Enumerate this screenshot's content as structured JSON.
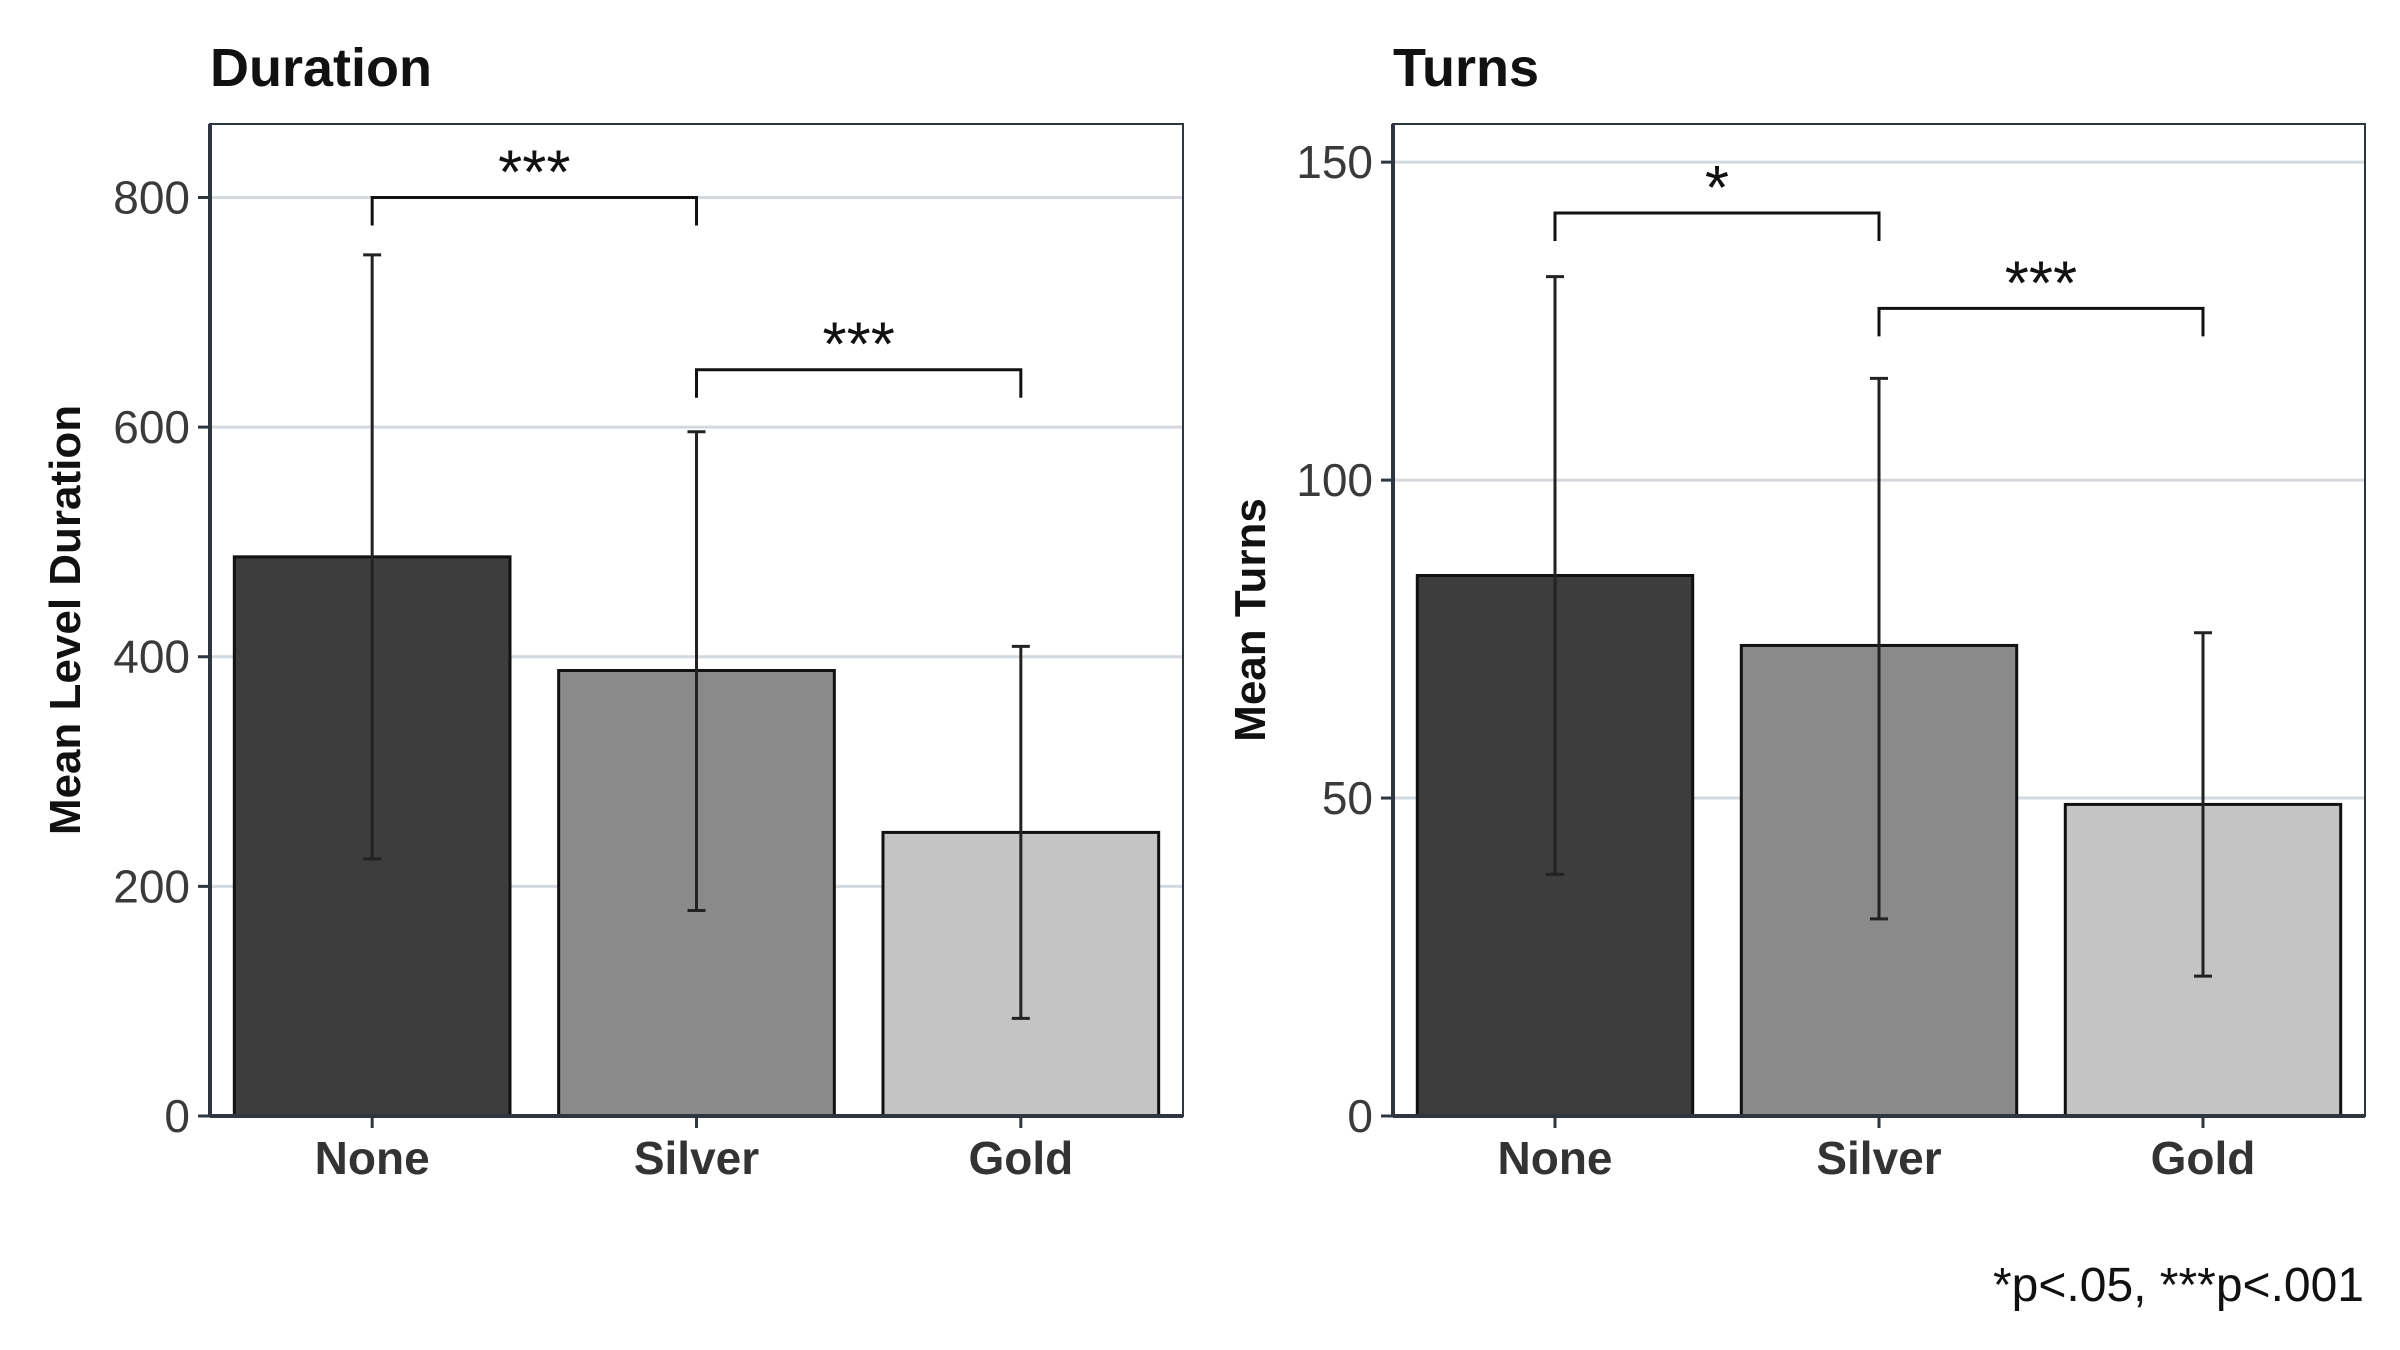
{
  "colors": {
    "none": "#3d3d3d",
    "silver": "#8a8a8a",
    "gold": "#c4c4c4",
    "grid": "#d3d9de",
    "axis": "#2f3640",
    "text": "#111111",
    "tick": "#3a3a3a"
  },
  "footnote": "*p<.05, ***p<.001",
  "chart_data": [
    {
      "type": "bar",
      "title": "Duration",
      "xlabel": "",
      "ylabel": "Mean Level Duration",
      "categories": [
        "None",
        "Silver",
        "Gold"
      ],
      "values": [
        487,
        388,
        247
      ],
      "error_low": [
        224,
        179,
        85
      ],
      "error_high": [
        750,
        596,
        409
      ],
      "ylim": [
        0,
        800
      ],
      "yticks": [
        0,
        200,
        400,
        600,
        800
      ],
      "grid": true,
      "significance": [
        {
          "from": 0,
          "to": 1,
          "label": "***",
          "y": 800
        },
        {
          "from": 1,
          "to": 2,
          "label": "***",
          "y": 650
        }
      ]
    },
    {
      "type": "bar",
      "title": "Turns",
      "xlabel": "",
      "ylabel": "Mean Turns",
      "categories": [
        "None",
        "Silver",
        "Gold"
      ],
      "values": [
        85,
        74,
        49
      ],
      "error_low": [
        38,
        31,
        22
      ],
      "error_high": [
        132,
        116,
        76
      ],
      "ylim": [
        0,
        150
      ],
      "yticks": [
        0,
        50,
        100,
        150
      ],
      "grid": true,
      "significance": [
        {
          "from": 0,
          "to": 1,
          "label": "*",
          "y": 142
        },
        {
          "from": 1,
          "to": 2,
          "label": "***",
          "y": 127
        }
      ]
    }
  ]
}
